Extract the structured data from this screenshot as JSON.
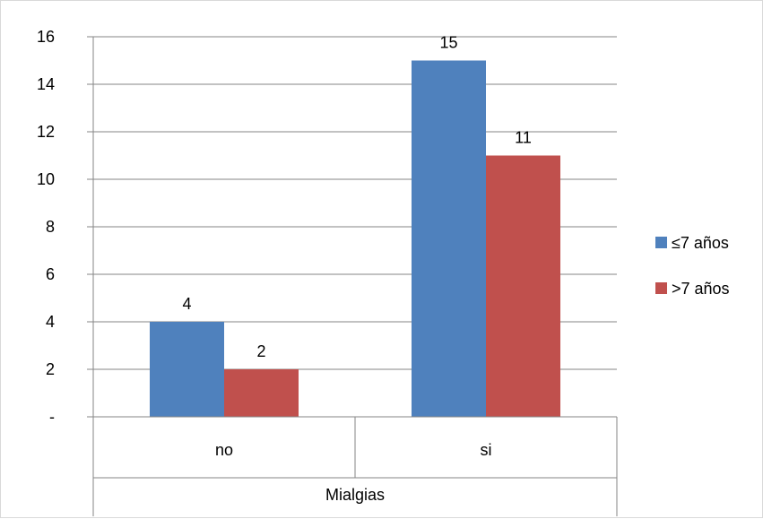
{
  "chart_data": {
    "type": "bar",
    "title": "",
    "xlabel": "Mialgias",
    "ylabel": "",
    "categories": [
      "no",
      "si"
    ],
    "series": [
      {
        "name": "≤7 años",
        "values": [
          4,
          15
        ],
        "color": "#4f81bd"
      },
      {
        "name": ">7 años",
        "values": [
          2,
          11
        ],
        "color": "#c0504d"
      }
    ],
    "ylim": [
      0,
      16
    ],
    "yticks": [
      0,
      2,
      4,
      6,
      8,
      10,
      12,
      14,
      16
    ],
    "ytick_labels": [
      "-",
      "2",
      "4",
      "6",
      "8",
      "10",
      "12",
      "14",
      "16"
    ],
    "data_labels": [
      [
        "4",
        "15"
      ],
      [
        "2",
        "11"
      ]
    ],
    "grid": true,
    "legend_position": "right"
  }
}
